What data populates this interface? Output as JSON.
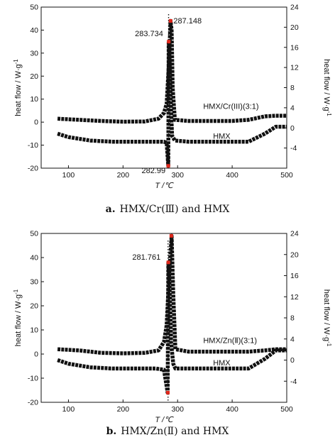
{
  "chart_data": [
    {
      "type": "line",
      "caption_letter": "a.",
      "caption_text": "HMX/Cr(Ⅲ) and HMX",
      "xlabel": "T /℃",
      "ylabel_left": "heat flow / W·g",
      "ylabel_right": "heat flow / W·g",
      "unit_superscript": "-1",
      "xlim": [
        50,
        500
      ],
      "ylim_left": [
        -20,
        50
      ],
      "ylim_right": [
        -8,
        24
      ],
      "x_ticks": [
        "100",
        "200",
        "300",
        "400",
        "500"
      ],
      "y_ticks_left": [
        "-20",
        "-10",
        "0",
        "10",
        "20",
        "30",
        "40",
        "50"
      ],
      "y_ticks_right": [
        "-4",
        "0",
        "4",
        "8",
        "12",
        "16",
        "20",
        "24"
      ],
      "annotations": [
        "287.148",
        "283.734",
        "282.99"
      ],
      "series": [
        {
          "name": "HMX/Cr(III)(3:1)",
          "axis": "left",
          "x": [
            80,
            120,
            160,
            200,
            240,
            265,
            275,
            280,
            284,
            287.148,
            289,
            291,
            295,
            320,
            360,
            400,
            430,
            460,
            480,
            500
          ],
          "y": [
            1.5,
            1,
            0.5,
            0.2,
            0.3,
            1.5,
            4,
            8,
            25,
            44,
            40,
            15,
            1,
            0.5,
            0.5,
            0.5,
            1,
            2.5,
            2.8,
            2.8
          ]
        },
        {
          "name": "HMX",
          "axis": "left",
          "x": [
            80,
            100,
            140,
            180,
            220,
            260,
            275,
            280,
            282.99,
            283.734,
            285,
            288,
            290,
            295,
            320,
            360,
            400,
            430,
            460,
            480,
            500
          ],
          "y": [
            -5,
            -6.5,
            -8,
            -8.5,
            -8.5,
            -8.5,
            -8.5,
            -9,
            -19,
            35,
            30,
            5,
            -6,
            -8,
            -8.5,
            -8.5,
            -8.5,
            -8.5,
            -5,
            -2,
            -2
          ]
        }
      ]
    },
    {
      "type": "line",
      "caption_letter": "b.",
      "caption_text": "HMX/Zn(Ⅱ) and HMX",
      "xlabel": "T /℃",
      "ylabel_left": "heat flow / W·g",
      "ylabel_right": "heat flow / W·g",
      "unit_superscript": "-1",
      "xlim": [
        50,
        500
      ],
      "ylim_left": [
        -20,
        50
      ],
      "ylim_right": [
        -8,
        24
      ],
      "x_ticks": [
        "100",
        "200",
        "300",
        "400",
        "500"
      ],
      "y_ticks_left": [
        "-20",
        "-10",
        "0",
        "10",
        "20",
        "30",
        "40",
        "50"
      ],
      "y_ticks_right": [
        "-4",
        "0",
        "4",
        "8",
        "12",
        "16",
        "20",
        "24"
      ],
      "annotations": [
        "281.761"
      ],
      "series": [
        {
          "name": "HMX/Zn(Ⅱ)(3:1)",
          "axis": "left",
          "x": [
            80,
            120,
            160,
            200,
            240,
            265,
            275,
            280,
            285,
            289,
            292,
            296,
            320,
            360,
            400,
            430,
            460,
            480,
            500
          ],
          "y": [
            2,
            1.5,
            0.5,
            0.3,
            0.5,
            1.5,
            5,
            12,
            35,
            49,
            25,
            2,
            1,
            1,
            1,
            1,
            1.5,
            2,
            2
          ]
        },
        {
          "name": "HMX",
          "axis": "left",
          "x": [
            80,
            100,
            140,
            180,
            220,
            260,
            275,
            281.761,
            283,
            285,
            288,
            292,
            296,
            320,
            360,
            400,
            430,
            460,
            480,
            500
          ],
          "y": [
            -2.5,
            -4,
            -5.5,
            -6,
            -6,
            -6,
            -6.5,
            -16,
            38,
            30,
            5,
            -4,
            -6,
            -6,
            -6,
            -6,
            -6,
            -2,
            1.5,
            1.5
          ]
        }
      ]
    }
  ]
}
